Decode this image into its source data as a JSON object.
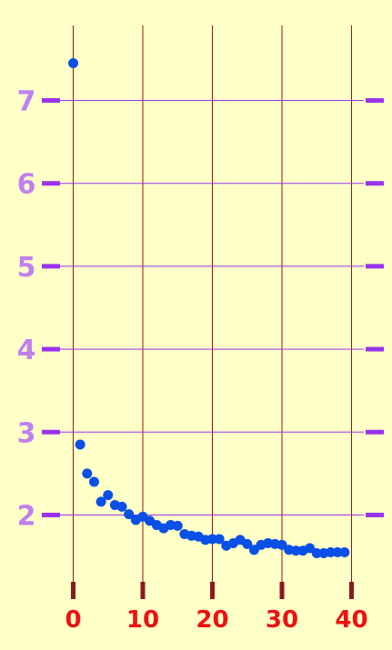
{
  "chart_data": {
    "type": "scatter",
    "title": "",
    "xlabel": "",
    "ylabel": "",
    "xlim": [
      -1,
      42
    ],
    "ylim": [
      1.3,
      7.9
    ],
    "x_ticks": [
      0,
      10,
      20,
      30,
      40
    ],
    "x_tick_labels": [
      "0",
      "10",
      "20",
      "30",
      "40"
    ],
    "y_ticks": [
      2,
      3,
      4,
      5,
      6,
      7
    ],
    "y_tick_labels": [
      "2",
      "3",
      "4",
      "5",
      "6",
      "7"
    ],
    "grid": true,
    "colors": {
      "background": "#ffffc8",
      "points": "#0a50e6",
      "x_grid": "#8b1a1a",
      "y_grid": "#9933ee",
      "x_tick_label": "#ee1111",
      "y_tick_label": "#c080f0"
    },
    "series": [
      {
        "x": [
          0,
          1,
          2,
          3,
          4,
          5,
          6,
          7,
          8,
          9,
          10,
          11,
          12,
          13,
          14,
          15,
          16,
          17,
          18,
          19,
          20,
          21,
          22,
          23,
          24,
          25,
          26,
          27,
          28,
          29,
          30,
          31,
          32,
          33,
          34,
          35,
          36,
          37,
          38,
          39
        ],
        "y": [
          7.45,
          2.85,
          2.5,
          2.4,
          2.16,
          2.24,
          2.12,
          2.1,
          2.01,
          1.94,
          1.98,
          1.93,
          1.88,
          1.84,
          1.88,
          1.87,
          1.77,
          1.75,
          1.74,
          1.7,
          1.71,
          1.71,
          1.63,
          1.66,
          1.7,
          1.65,
          1.58,
          1.64,
          1.66,
          1.65,
          1.64,
          1.58,
          1.57,
          1.57,
          1.6,
          1.54,
          1.54,
          1.55,
          1.55,
          1.55
        ]
      }
    ]
  }
}
